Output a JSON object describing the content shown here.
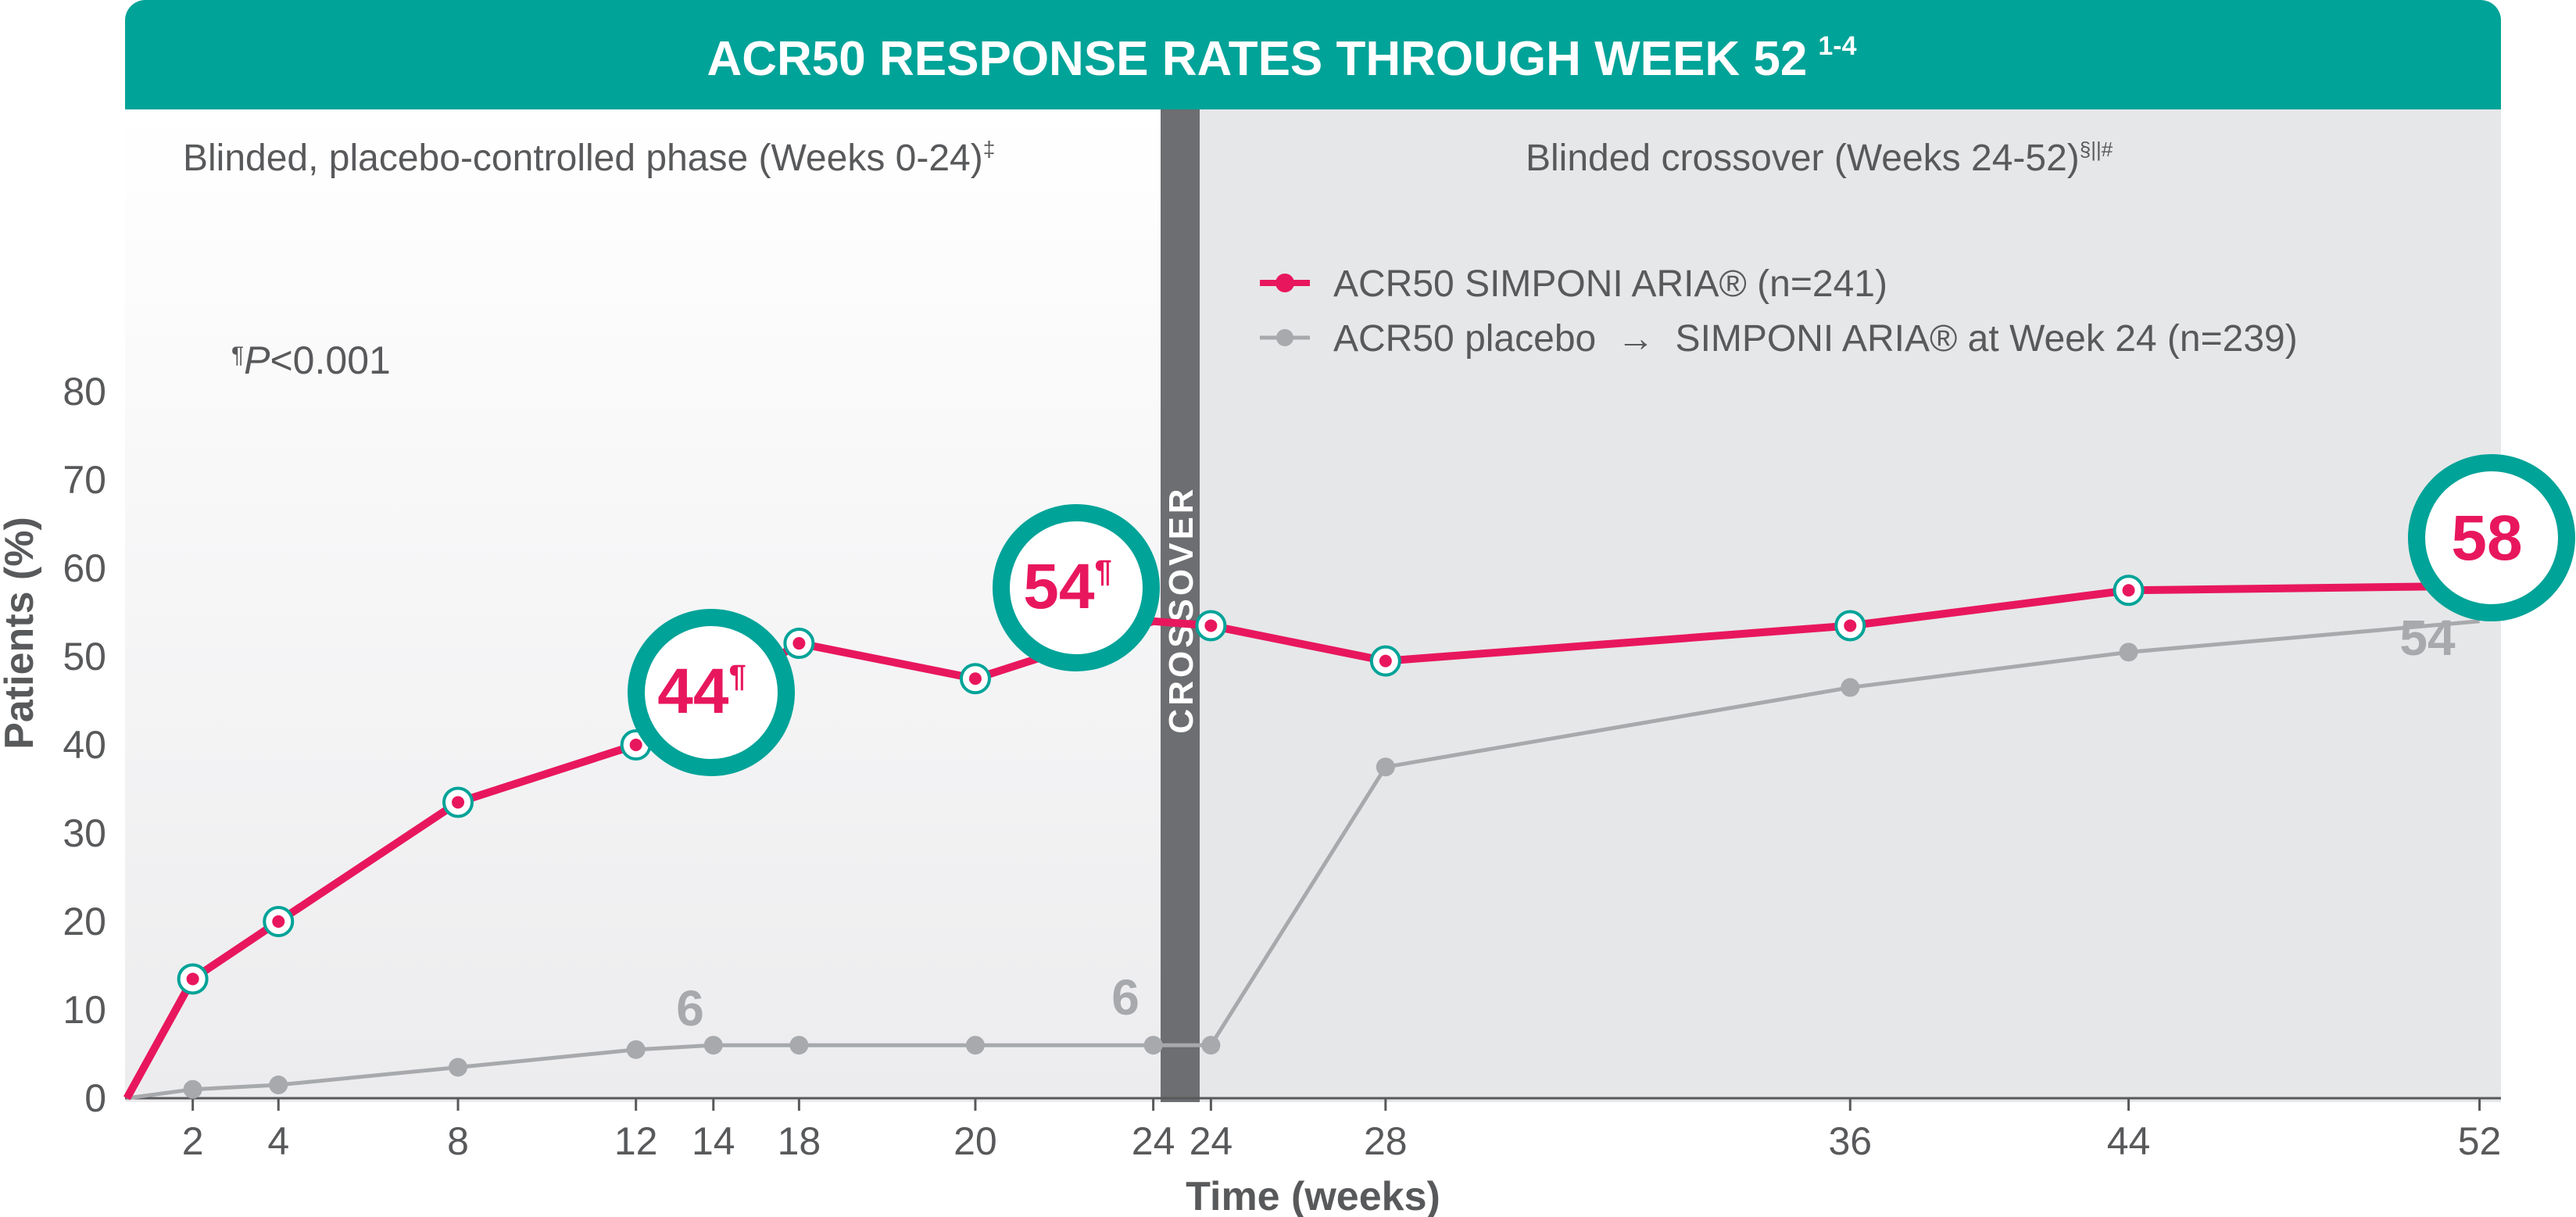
{
  "banner": {
    "title": "ACR50 RESPONSE RATES THROUGH WEEK 52",
    "superscript": "1-4"
  },
  "phases": {
    "left_label": "Blinded, placebo-controlled phase (Weeks 0-24)",
    "left_mark": "‡",
    "right_label": "Blinded crossover (Weeks 24-52)",
    "right_mark": "§||#",
    "crossover_label": "CROSSOVER"
  },
  "pvalue": {
    "mark": "¶",
    "italic": "P",
    "rest": "<0.001"
  },
  "legend": {
    "simponi": "ACR50 SIMPONI ARIA® (n=241)",
    "placebo": "ACR50 placebo  →  SIMPONI ARIA® at Week 24 (n=239)"
  },
  "axes": {
    "ylabel": "Patients (%)",
    "xlabel": "Time (weeks)"
  },
  "callouts": {
    "c44": "44",
    "c44_mark": "¶",
    "c54": "54",
    "c54_mark": "¶",
    "c58": "58",
    "placebo_6a": "6",
    "placebo_6b": "6",
    "placebo_54": "54"
  },
  "colors": {
    "banner": "#00A398",
    "simponi": "#E8175D",
    "placebo": "#A7A9AC",
    "ring": "#00A398",
    "divider": "#6D6E71",
    "right_panel": "#E6E7E8"
  },
  "chart_data": {
    "type": "line",
    "ylim": [
      0,
      80
    ],
    "yticks": [
      "0",
      "10",
      "20",
      "30",
      "40",
      "50",
      "60",
      "70",
      "80"
    ],
    "xticks_left": [
      "2",
      "4",
      "8",
      "12",
      "14",
      "18",
      "20",
      "24"
    ],
    "xticks_right": [
      "24",
      "28",
      "36",
      "44",
      "52"
    ],
    "series": [
      {
        "name": "ACR50 SIMPONI ARIA® (n=241)",
        "values": [
          0,
          13.5,
          20,
          33.5,
          40,
          51.5,
          47.5,
          54,
          53.5,
          49.5,
          53.5,
          57.5,
          58
        ]
      },
      {
        "name": "ACR50 placebo → SIMPONI ARIA® at Week 24 (n=239)",
        "values": [
          0,
          1,
          1.5,
          3.5,
          5.5,
          6,
          6,
          6,
          6,
          6,
          37.5,
          46.5,
          50.5,
          54
        ]
      }
    ]
  }
}
